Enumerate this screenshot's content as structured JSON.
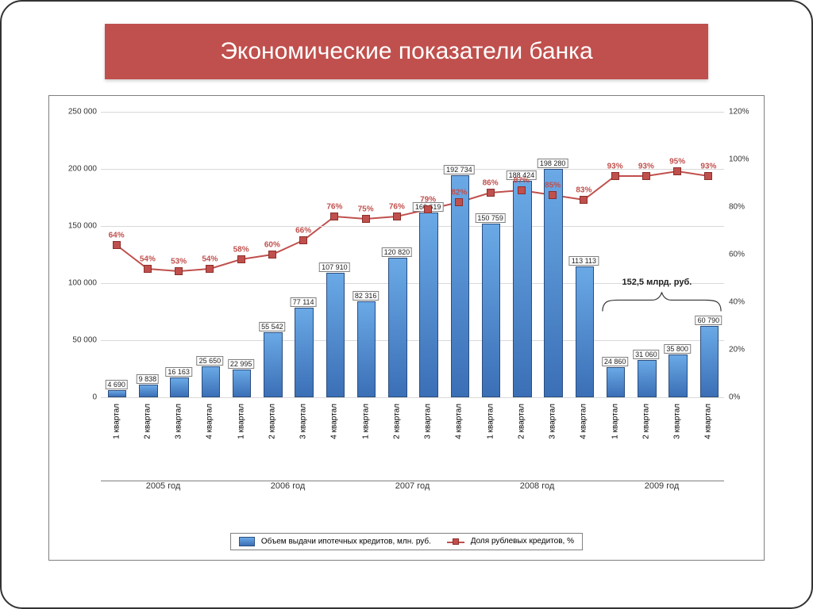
{
  "slide": {
    "title": "Экономические показатели банка",
    "title_bg": "#c0504d",
    "title_color": "#ffffff",
    "title_fontsize": 30,
    "frame_border_color": "#333333",
    "frame_border_radius": 28
  },
  "chart": {
    "type": "bar+line",
    "plot_bg": "#ffffff",
    "grid_color": "#d9d9d9",
    "border_color": "#7f7f7f",
    "left_axis": {
      "min": 0,
      "max": 250000,
      "step": 50000,
      "labels": [
        "0",
        "50 000",
        "100 000",
        "150 000",
        "200 000",
        "250 000"
      ]
    },
    "right_axis": {
      "min": 0,
      "max": 120,
      "step": 20,
      "labels": [
        "0%",
        "20%",
        "40%",
        "60%",
        "80%",
        "100%",
        "120%"
      ]
    },
    "years": [
      {
        "label": "2005 год",
        "quarters": [
          "1 квартал",
          "2 квартал",
          "3 квартал",
          "4 квартал"
        ]
      },
      {
        "label": "2006 год",
        "quarters": [
          "1 квартал",
          "2 квартал",
          "3 квартал",
          "4 квартал"
        ]
      },
      {
        "label": "2007 год",
        "quarters": [
          "1 квартал",
          "2 квартал",
          "3 квартал",
          "4 квартал"
        ]
      },
      {
        "label": "2008 год",
        "quarters": [
          "1 квартал",
          "2 квартал",
          "3 квартал",
          "4 квартал"
        ]
      },
      {
        "label": "2009 год",
        "quarters": [
          "1 квартал",
          "2 квартал",
          "3 квартал",
          "4 квартал"
        ]
      }
    ],
    "bars": {
      "name": "Объем выдачи ипотечных кредитов, млн. руб.",
      "color_top": "#6aa9e6",
      "color_bottom": "#3b6fb6",
      "border_color": "#2a4d7f",
      "width_ratio": 0.55,
      "values": [
        4690,
        9838,
        16163,
        25650,
        22995,
        55542,
        77114,
        107910,
        82316,
        120820,
        160619,
        192734,
        150759,
        188424,
        198280,
        113113,
        24860,
        31060,
        35800,
        60790
      ],
      "labels": [
        "4 690",
        "9 838",
        "16 163",
        "25 650",
        "22 995",
        "55 542",
        "77 114",
        "107 910",
        "82 316",
        "120 820",
        "160 619",
        "192 734",
        "150 759",
        "188 424",
        "198 280",
        "113 113",
        "24 860",
        "31 060",
        "35 800",
        "60 790"
      ]
    },
    "line": {
      "name": "Доля рублевых кредитов, %",
      "color": "#c0504d",
      "marker_border": "#8b2e2b",
      "marker_style": "square",
      "marker_size": 8,
      "line_width": 2,
      "values": [
        64,
        54,
        53,
        54,
        58,
        60,
        66,
        76,
        75,
        76,
        79,
        82,
        86,
        87,
        85,
        83,
        93,
        93,
        95,
        93
      ],
      "labels": [
        "64%",
        "54%",
        "53%",
        "54%",
        "58%",
        "60%",
        "66%",
        "76%",
        "75%",
        "76%",
        "79%",
        "82%",
        "86%",
        "87%",
        "85%",
        "83%",
        "93%",
        "93%",
        "95%",
        "93%"
      ]
    },
    "annotation": {
      "text": "152,5 млрд. руб.",
      "covers_indexes": [
        16,
        17,
        18,
        19
      ]
    },
    "legend": {
      "series1": "Объем выдачи ипотечных кредитов, млн. руб.",
      "series2": "Доля рублевых кредитов, %"
    }
  }
}
